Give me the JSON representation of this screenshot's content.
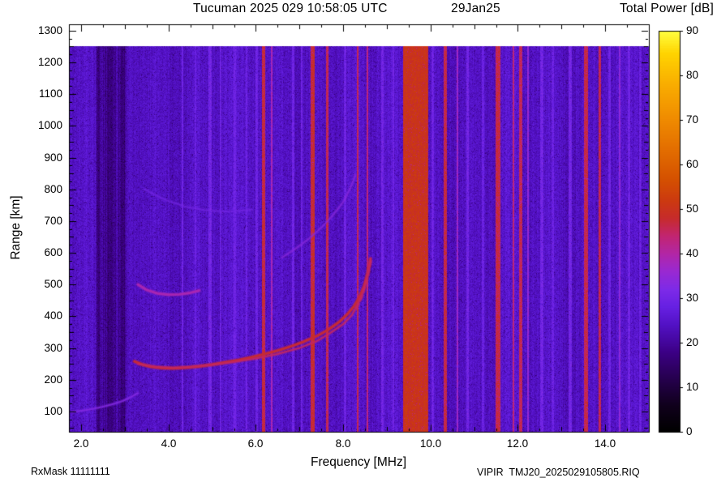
{
  "header": {
    "title": "Tucuman 2025 029 10:58:05 UTC",
    "date": "29Jan25",
    "colorbar_title": "Total Power [dB]"
  },
  "footer": {
    "rx_mask": "RxMask 11111111",
    "source": "VIPIR  TMJ20_2025029105805.RIQ"
  },
  "chart_data": {
    "type": "heatmap",
    "subtype": "ionogram",
    "title": "Tucuman 2025 029 10:58:05 UTC",
    "date": "29Jan25",
    "xlabel": "Frequency [MHz]",
    "ylabel": "Range [km]",
    "zlabel": "Total Power [dB]",
    "xlim": [
      1.72,
      15.0
    ],
    "frame_ylim": [
      36,
      1320
    ],
    "data_top_km": 1250,
    "x_minor_step": 0.5,
    "y_minor_step": 25,
    "xticks": [
      {
        "f": 2,
        "label": "2.0"
      },
      {
        "f": 4,
        "label": "4.0"
      },
      {
        "f": 6,
        "label": "6.0"
      },
      {
        "f": 8,
        "label": "8.0"
      },
      {
        "f": 10,
        "label": "10.0"
      },
      {
        "f": 12,
        "label": "12.0"
      },
      {
        "f": 14,
        "label": "14.0"
      }
    ],
    "yticks": [
      {
        "r": 100,
        "label": "100"
      },
      {
        "r": 200,
        "label": "200"
      },
      {
        "r": 300,
        "label": "300"
      },
      {
        "r": 400,
        "label": "400"
      },
      {
        "r": 500,
        "label": "500"
      },
      {
        "r": 600,
        "label": "600"
      },
      {
        "r": 700,
        "label": "700"
      },
      {
        "r": 800,
        "label": "800"
      },
      {
        "r": 900,
        "label": "900"
      },
      {
        "r": 1000,
        "label": "1000"
      },
      {
        "r": 1100,
        "label": "1100"
      },
      {
        "r": 1200,
        "label": "1200"
      },
      {
        "r": 1300,
        "label": "1300"
      }
    ],
    "colorbar": {
      "min": 0,
      "max": 90,
      "ticks": [
        {
          "v": 0,
          "label": "0"
        },
        {
          "v": 10,
          "label": "10"
        },
        {
          "v": 20,
          "label": "20"
        },
        {
          "v": 30,
          "label": "30"
        },
        {
          "v": 40,
          "label": "40"
        },
        {
          "v": 50,
          "label": "50"
        },
        {
          "v": 60,
          "label": "60"
        },
        {
          "v": 70,
          "label": "70"
        },
        {
          "v": 80,
          "label": "80"
        },
        {
          "v": 90,
          "label": "90"
        }
      ]
    },
    "palette": [
      [
        0,
        "#000000"
      ],
      [
        6,
        "#10001c"
      ],
      [
        12,
        "#26004e"
      ],
      [
        18,
        "#3c0086"
      ],
      [
        24,
        "#5211c4"
      ],
      [
        28,
        "#6620e2"
      ],
      [
        32,
        "#7d2ae8"
      ],
      [
        36,
        "#9929d2"
      ],
      [
        40,
        "#b226a6"
      ],
      [
        44,
        "#c22571"
      ],
      [
        48,
        "#c62b2b"
      ],
      [
        52,
        "#cc3a10"
      ],
      [
        57,
        "#d55200"
      ],
      [
        63,
        "#e26c00"
      ],
      [
        70,
        "#ef8a00"
      ],
      [
        78,
        "#f9ad00"
      ],
      [
        85,
        "#ffd400"
      ],
      [
        90,
        "#ffff40"
      ]
    ],
    "background_db": 24.4,
    "pixel_noise_db": 5.2,
    "dark_band": {
      "f_min": 2.35,
      "f_max": 3.06,
      "min_drop": 2.5,
      "max_drop": 9.0
    },
    "rfi_bands": [
      {
        "f": 6.18,
        "width": 0.07,
        "db": 47
      },
      {
        "f": 6.36,
        "width": 0.04,
        "db": 38
      },
      {
        "f": 7.3,
        "width": 0.09,
        "db": 48
      },
      {
        "f": 7.63,
        "width": 0.06,
        "db": 46
      },
      {
        "f": 8.33,
        "width": 0.05,
        "db": 46
      },
      {
        "f": 8.56,
        "width": 0.04,
        "db": 44
      },
      {
        "f": 9.66,
        "width": 0.58,
        "db": 50
      },
      {
        "f": 10.34,
        "width": 0.06,
        "db": 47
      },
      {
        "f": 10.62,
        "width": 0.04,
        "db": 37
      },
      {
        "f": 11.54,
        "width": 0.11,
        "db": 46
      },
      {
        "f": 11.9,
        "width": 0.05,
        "db": 43
      },
      {
        "f": 12.06,
        "width": 0.08,
        "db": 46
      },
      {
        "f": 12.24,
        "width": 0.04,
        "db": 36
      },
      {
        "f": 13.56,
        "width": 0.08,
        "db": 46
      },
      {
        "f": 13.88,
        "width": 0.06,
        "db": 46
      },
      {
        "f": 14.33,
        "width": 0.04,
        "db": 34
      }
    ],
    "soft_bands": [
      {
        "f": 4.32,
        "width": 0.05,
        "db": 29.5
      },
      {
        "f": 4.62,
        "width": 0.04,
        "db": 29
      },
      {
        "f": 4.95,
        "width": 0.06,
        "db": 30
      },
      {
        "f": 5.2,
        "width": 0.04,
        "db": 29
      },
      {
        "f": 5.52,
        "width": 0.05,
        "db": 29.5
      },
      {
        "f": 5.78,
        "width": 0.04,
        "db": 29
      },
      {
        "f": 6.02,
        "width": 0.04,
        "db": 29.5
      },
      {
        "f": 6.85,
        "width": 0.05,
        "db": 29.5
      },
      {
        "f": 7.05,
        "width": 0.04,
        "db": 29
      },
      {
        "f": 8.05,
        "width": 0.05,
        "db": 29.5
      },
      {
        "f": 8.9,
        "width": 0.06,
        "db": 30
      },
      {
        "f": 9.15,
        "width": 0.05,
        "db": 29.5
      },
      {
        "f": 10.05,
        "width": 0.05,
        "db": 29.5
      },
      {
        "f": 10.85,
        "width": 0.06,
        "db": 30
      },
      {
        "f": 11.2,
        "width": 0.05,
        "db": 29
      },
      {
        "f": 12.55,
        "width": 0.06,
        "db": 30
      },
      {
        "f": 12.8,
        "width": 0.05,
        "db": 29
      },
      {
        "f": 13.2,
        "width": 0.06,
        "db": 30
      },
      {
        "f": 14.1,
        "width": 0.05,
        "db": 29.5
      },
      {
        "f": 14.55,
        "width": 0.06,
        "db": 30
      },
      {
        "f": 14.8,
        "width": 0.05,
        "db": 29
      }
    ],
    "traces": [
      {
        "name": "f-region-o-mode",
        "db": 47.5,
        "width": 3,
        "alpha": 1,
        "points": [
          [
            3.22,
            258
          ],
          [
            3.4,
            248
          ],
          [
            3.6,
            241
          ],
          [
            3.85,
            237
          ],
          [
            4.1,
            236
          ],
          [
            4.4,
            238
          ],
          [
            4.7,
            242
          ],
          [
            5.0,
            248
          ],
          [
            5.3,
            255
          ],
          [
            5.6,
            262
          ],
          [
            5.9,
            271
          ],
          [
            6.2,
            281
          ],
          [
            6.5,
            292
          ],
          [
            6.8,
            305
          ],
          [
            7.1,
            320
          ],
          [
            7.4,
            338
          ],
          [
            7.65,
            357
          ],
          [
            7.9,
            381
          ],
          [
            8.1,
            407
          ],
          [
            8.25,
            432
          ],
          [
            8.38,
            462
          ],
          [
            8.48,
            495
          ],
          [
            8.55,
            530
          ],
          [
            8.6,
            562
          ],
          [
            8.62,
            580
          ]
        ]
      },
      {
        "name": "f-region-x-mode",
        "db": 45,
        "width": 2,
        "alpha": 0.9,
        "points": [
          [
            3.3,
            250
          ],
          [
            3.7,
            241
          ],
          [
            4.1,
            238
          ],
          [
            4.5,
            240
          ],
          [
            5.0,
            247
          ],
          [
            5.5,
            256
          ],
          [
            6.0,
            267
          ],
          [
            6.5,
            281
          ],
          [
            7.0,
            300
          ],
          [
            7.4,
            322
          ],
          [
            7.7,
            347
          ],
          [
            8.0,
            375
          ],
          [
            8.2,
            404
          ],
          [
            8.33,
            436
          ],
          [
            8.44,
            470
          ],
          [
            8.52,
            507
          ],
          [
            8.58,
            545
          ],
          [
            8.63,
            582
          ]
        ]
      },
      {
        "name": "x-mode-asymptote-dashes",
        "db": 45,
        "width": 2,
        "alpha": 0.9,
        "dash": [
          6,
          5
        ],
        "points": [
          [
            8.3,
            425
          ],
          [
            8.42,
            458
          ],
          [
            8.5,
            492
          ],
          [
            8.57,
            530
          ],
          [
            8.62,
            565
          ],
          [
            8.65,
            585
          ]
        ]
      },
      {
        "name": "second-hop-low",
        "db": 39,
        "width": 3,
        "alpha": 0.95,
        "points": [
          [
            3.3,
            500
          ],
          [
            3.5,
            483
          ],
          [
            3.75,
            472
          ],
          [
            4.0,
            468
          ],
          [
            4.25,
            469
          ],
          [
            4.5,
            474
          ],
          [
            4.7,
            481
          ]
        ]
      },
      {
        "name": "second-hop-high",
        "db": 34,
        "width": 2,
        "alpha": 0.65,
        "points": [
          [
            6.6,
            585
          ],
          [
            6.9,
            612
          ],
          [
            7.2,
            643
          ],
          [
            7.5,
            679
          ],
          [
            7.75,
            716
          ],
          [
            8.0,
            760
          ],
          [
            8.15,
            800
          ],
          [
            8.28,
            845
          ]
        ]
      },
      {
        "name": "upper-left-streak",
        "db": 31,
        "width": 2,
        "alpha": 0.55,
        "points": [
          [
            3.45,
            800
          ],
          [
            3.9,
            768
          ],
          [
            4.4,
            745
          ],
          [
            4.9,
            733
          ],
          [
            5.4,
            730
          ],
          [
            5.9,
            736
          ]
        ]
      },
      {
        "name": "e-region-trace",
        "db": 33,
        "width": 2,
        "alpha": 0.8,
        "points": [
          [
            1.78,
            98
          ],
          [
            2.1,
            104
          ],
          [
            2.4,
            112
          ],
          [
            2.7,
            122
          ],
          [
            2.95,
            133
          ],
          [
            3.15,
            146
          ],
          [
            3.3,
            158
          ]
        ]
      }
    ]
  }
}
